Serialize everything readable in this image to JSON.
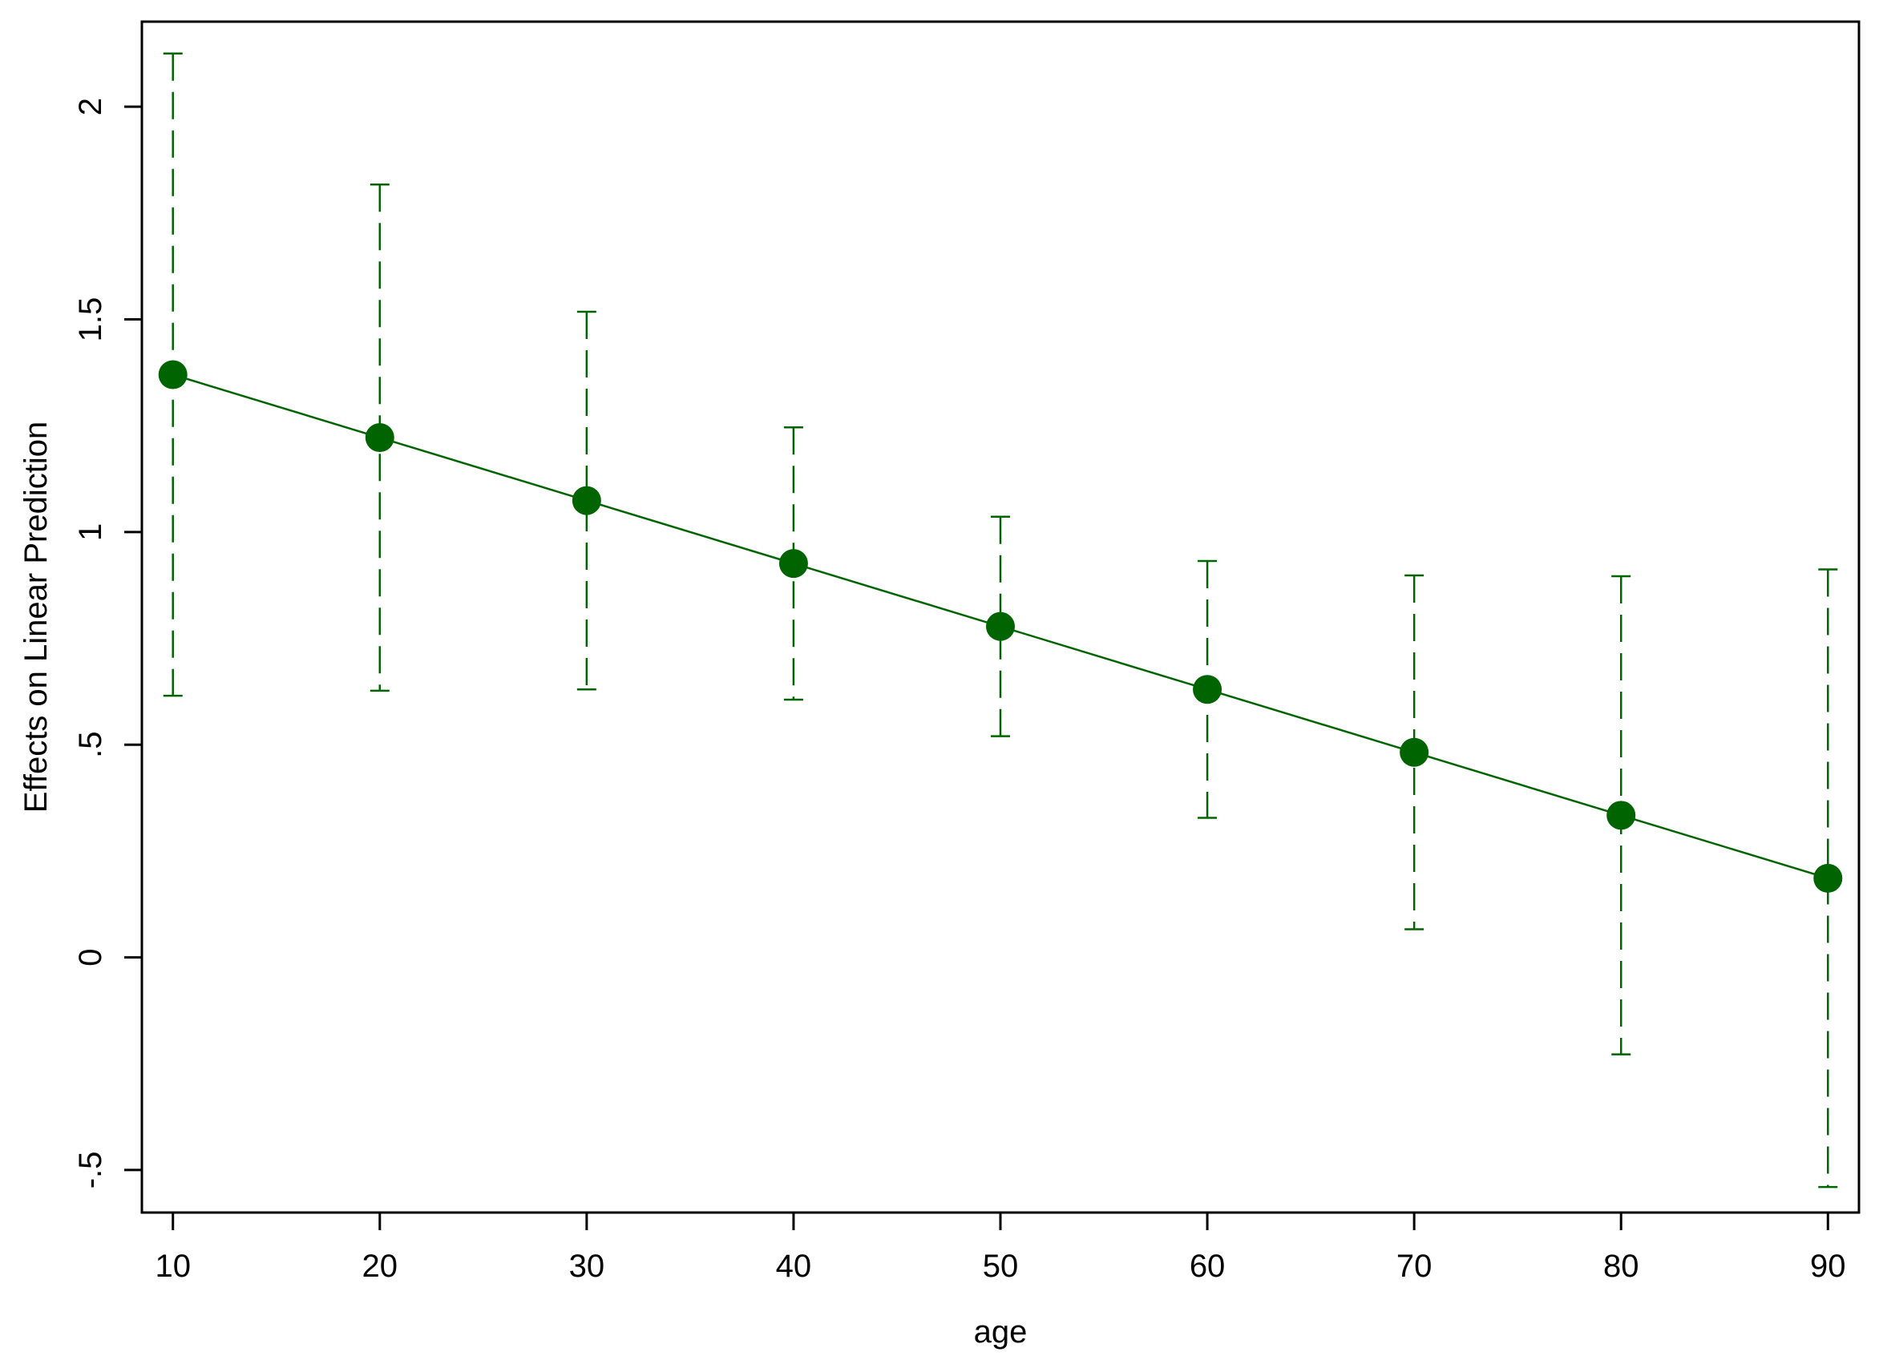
{
  "chart_data": {
    "type": "scatter",
    "title": "",
    "xlabel": "age",
    "ylabel": "Effects on Linear Prediction",
    "xlim": [
      8.5,
      91.5
    ],
    "ylim": [
      -0.6,
      2.2
    ],
    "xticks": [
      10,
      20,
      30,
      40,
      50,
      60,
      70,
      80,
      90
    ],
    "xtick_labels": [
      "10",
      "20",
      "30",
      "40",
      "50",
      "60",
      "70",
      "80",
      "90"
    ],
    "yticks": [
      -0.5,
      0,
      0.5,
      1,
      1.5,
      2
    ],
    "ytick_labels": [
      "-.5",
      "0",
      ".5",
      "1",
      "1.5",
      "2"
    ],
    "grid": false,
    "legend": "none",
    "color": "#006400",
    "series": [
      {
        "x": [
          10,
          20,
          30,
          40,
          50,
          60,
          70,
          80,
          90
        ],
        "y": [
          1.37,
          1.222,
          1.074,
          0.926,
          0.778,
          0.63,
          0.482,
          0.334,
          0.186
        ],
        "ci_low": [
          0.615,
          0.627,
          0.63,
          0.606,
          0.52,
          0.328,
          0.066,
          -0.228,
          -0.54
        ],
        "ci_high": [
          2.125,
          1.817,
          1.518,
          1.246,
          1.036,
          0.932,
          0.898,
          0.896,
          0.912
        ]
      }
    ]
  }
}
